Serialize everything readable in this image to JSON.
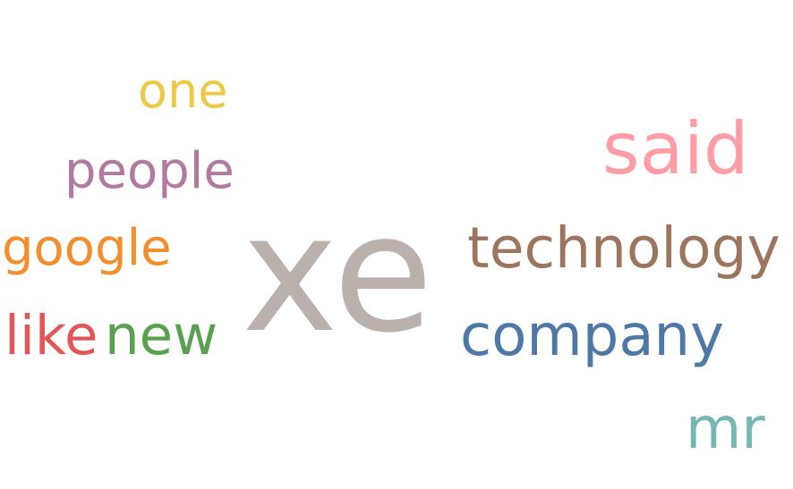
{
  "word_cloud": {
    "words": [
      {
        "id": "xe",
        "text": "xe",
        "color": "#bab0ac"
      },
      {
        "id": "said",
        "text": "said",
        "color": "#ff9da7"
      },
      {
        "id": "technology",
        "text": "technology",
        "color": "#9c755f"
      },
      {
        "id": "company",
        "text": "company",
        "color": "#4e79a7"
      },
      {
        "id": "google",
        "text": "google",
        "color": "#f28e2b"
      },
      {
        "id": "people",
        "text": "people",
        "color": "#b07aa1"
      },
      {
        "id": "new",
        "text": "new",
        "color": "#59a14f"
      },
      {
        "id": "one",
        "text": "one",
        "color": "#edc948"
      },
      {
        "id": "like",
        "text": "like",
        "color": "#e15759"
      },
      {
        "id": "mr",
        "text": "mr",
        "color": "#76b7b2"
      }
    ]
  }
}
